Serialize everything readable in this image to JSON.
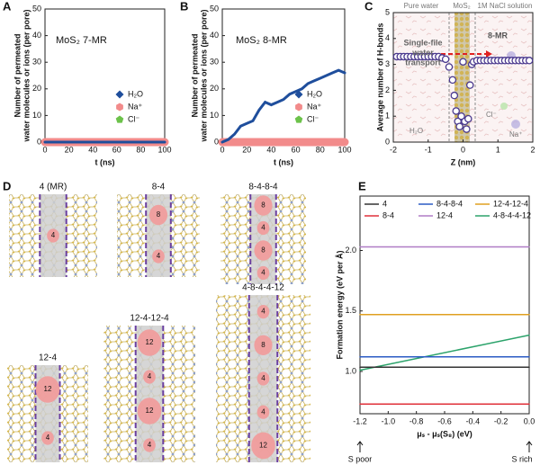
{
  "chart_data": [
    {
      "type": "line",
      "label": "A",
      "title": "MoS₂ 7-MR",
      "xlabel": "t (ns)",
      "ylabel": [
        "Number of permeated",
        "water molecules or ions (per pore)"
      ],
      "x": [
        0,
        10,
        20,
        30,
        40,
        50,
        60,
        70,
        80,
        90,
        100
      ],
      "series": [
        {
          "name": "H₂O",
          "color": "#1f4e9c",
          "marker": "diamond",
          "values": [
            0,
            0,
            0,
            0,
            0,
            0,
            0,
            0,
            0,
            0,
            0
          ]
        },
        {
          "name": "Na⁺",
          "color": "#f28b8b",
          "marker": "hexagon",
          "values": [
            0,
            0,
            0,
            0,
            0,
            0,
            0,
            0,
            0,
            0,
            0
          ]
        },
        {
          "name": "Cl⁻",
          "color": "#6cc24a",
          "marker": "pentagon",
          "values": [
            0,
            0,
            0,
            0,
            0,
            0,
            0,
            0,
            0,
            0,
            0
          ]
        }
      ],
      "xlim": [
        0,
        100
      ],
      "ylim": [
        0,
        50
      ],
      "xticks": [
        0,
        20,
        40,
        60,
        80,
        100
      ],
      "yticks": [
        0,
        10,
        20,
        30,
        40,
        50
      ]
    },
    {
      "type": "line",
      "label": "B",
      "title": "MoS₂ 8-MR",
      "xlabel": "t (ns)",
      "ylabel": [
        "Number of permeated",
        "water molecules or ions (per pore)"
      ],
      "x": [
        0,
        5,
        10,
        15,
        20,
        25,
        30,
        35,
        40,
        45,
        50,
        55,
        60,
        65,
        70,
        75,
        80,
        85,
        90,
        95,
        100
      ],
      "series": [
        {
          "name": "H₂O",
          "color": "#1f4e9c",
          "marker": "diamond",
          "values": [
            0,
            1,
            3,
            6,
            7,
            8,
            12,
            15,
            14,
            15,
            16,
            18,
            19,
            20,
            22,
            23,
            24,
            25,
            26,
            27,
            26
          ]
        },
        {
          "name": "Na⁺",
          "color": "#f28b8b",
          "marker": "hexagon",
          "values": [
            0,
            0,
            0,
            0,
            0,
            0,
            0,
            0,
            0,
            0,
            0,
            0,
            0,
            0,
            0,
            0,
            0,
            0,
            0,
            0,
            0
          ]
        },
        {
          "name": "Cl⁻",
          "color": "#6cc24a",
          "marker": "pentagon",
          "values": [
            0,
            0,
            0,
            0,
            0,
            0,
            0,
            0,
            0,
            0,
            0,
            0,
            0,
            0,
            0,
            0,
            0,
            0,
            0,
            0,
            0
          ]
        }
      ],
      "xlim": [
        0,
        100
      ],
      "ylim": [
        0,
        50
      ],
      "xticks": [
        0,
        20,
        40,
        60,
        80,
        100
      ],
      "yticks": [
        0,
        10,
        20,
        30,
        40,
        50
      ]
    },
    {
      "type": "scatter",
      "label": "C",
      "xlabel": "Z (nm)",
      "ylabel": [
        "Average number of H-bonds"
      ],
      "x": [
        -1.9,
        -1.8,
        -1.7,
        -1.6,
        -1.5,
        -1.4,
        -1.3,
        -1.2,
        -1.1,
        -1.0,
        -0.9,
        -0.8,
        -0.7,
        -0.6,
        -0.5,
        -0.4,
        -0.3,
        -0.25,
        -0.2,
        -0.15,
        -0.1,
        -0.05,
        0,
        0.05,
        0.1,
        0.15,
        0.2,
        0.25,
        0.3,
        0.4,
        0.5,
        0.6,
        0.7,
        0.8,
        0.9,
        1.0,
        1.1,
        1.2,
        1.3,
        1.4,
        1.5,
        1.6,
        1.7,
        1.8,
        1.9
      ],
      "values": [
        3.3,
        3.3,
        3.3,
        3.3,
        3.3,
        3.3,
        3.3,
        3.3,
        3.3,
        3.3,
        3.3,
        3.3,
        3.3,
        3.25,
        3.2,
        2.9,
        2.4,
        1.8,
        1.2,
        0.8,
        0.6,
        1.0,
        3.1,
        0.8,
        0.5,
        0.9,
        2.2,
        3.0,
        3.1,
        3.15,
        3.15,
        3.15,
        3.15,
        3.15,
        3.15,
        3.15,
        3.15,
        3.15,
        3.15,
        3.15,
        3.15,
        3.15,
        3.15,
        3.15,
        3.15
      ],
      "color": "#4b3a8f",
      "xlim": [
        -2,
        2
      ],
      "ylim": [
        0,
        5
      ],
      "xticks": [
        -2,
        -1,
        0,
        1,
        2
      ],
      "yticks": [
        0,
        1,
        2,
        3,
        4,
        5
      ],
      "annotations": [
        "Pure water",
        "MoS₂",
        "1M NaCl solution",
        [
          "Single-file",
          "water",
          "transport"
        ],
        "8-MR",
        "H₂O",
        "Cl⁻",
        "Na⁺"
      ]
    },
    {
      "type": "line",
      "label": "E",
      "xlabel": "μₛ - μₛ(S₈) (eV)",
      "ylabel": [
        "Formation energy (eV per Å)"
      ],
      "x": [
        -1.2,
        0
      ],
      "series": [
        {
          "name": "4",
          "color": "#333333",
          "values": [
            1.035,
            1.035
          ]
        },
        {
          "name": "8-4",
          "color": "#e0303a",
          "values": [
            0.73,
            0.73
          ]
        },
        {
          "name": "8-4-8-4",
          "color": "#2b5bc4",
          "values": [
            1.12,
            1.12
          ]
        },
        {
          "name": "12-4",
          "color": "#b07cc6",
          "values": [
            2.03,
            2.03
          ]
        },
        {
          "name": "12-4-12-4",
          "color": "#e0a020",
          "values": [
            1.47,
            1.47
          ]
        },
        {
          "name": "4-8-4-4-12",
          "color": "#2ca36b",
          "values": [
            1.01,
            1.3
          ]
        }
      ],
      "xlim": [
        -1.2,
        0
      ],
      "ylim": [
        0.65,
        2.45
      ],
      "xticks": [
        -1.2,
        {
          "value": -1.0,
          "label": "-1.0"
        },
        -0.8,
        -0.6,
        -0.4,
        -0.2,
        {
          "value": 0,
          "label": "0.0"
        }
      ],
      "yticks": [
        {
          "value": 1,
          "label": "1.0"
        },
        1.5,
        {
          "value": 2,
          "label": "2.0"
        }
      ],
      "annotations": [
        "S poor",
        "S rich"
      ]
    }
  ],
  "diagram": {
    "label": "D",
    "structures": [
      {
        "title": "4 (MR)",
        "rings": [
          "4"
        ]
      },
      {
        "title": "8-4",
        "rings": [
          "8",
          "4"
        ]
      },
      {
        "title": "8-4-8-4",
        "rings": [
          "8",
          "4",
          "8",
          "4"
        ]
      },
      {
        "title": "12-4",
        "rings": [
          "12",
          "4"
        ]
      },
      {
        "title": "12-4-12-4",
        "rings": [
          "12",
          "4",
          "12",
          "4"
        ]
      },
      {
        "title": "4-8-4-4-12",
        "rings": [
          "4",
          "8",
          "4",
          "4",
          "12"
        ]
      }
    ]
  }
}
